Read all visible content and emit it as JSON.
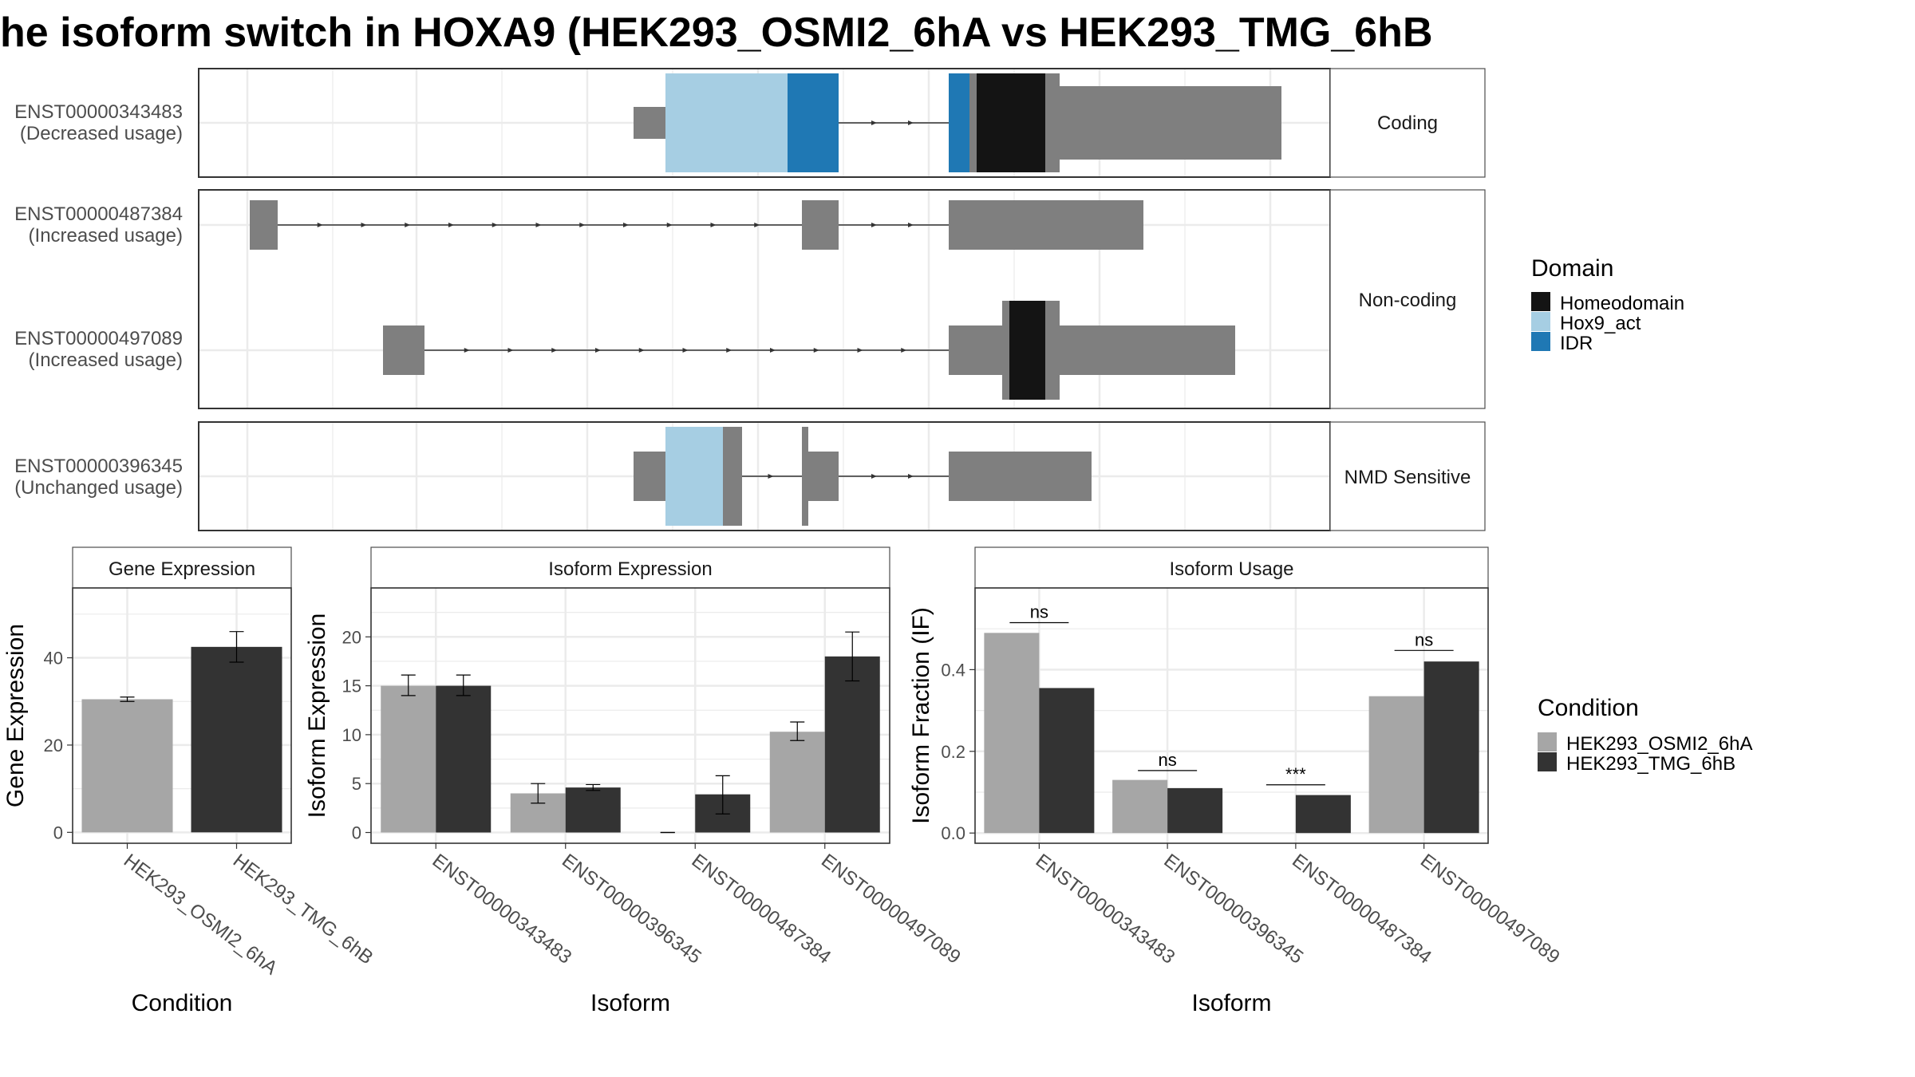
{
  "title": "he isoform switch in HOXA9 (HEK293_OSMI2_6hA vs HEK293_TMG_6hB",
  "colors": {
    "exon": "#7f7f7f",
    "homeodomain": "#141414",
    "hox9_act": "#a6cee3",
    "idr": "#1f78b4",
    "cond_a": "#a6a6a6",
    "cond_b": "#333333",
    "grid": "#ebebeb",
    "strip": "#ffffff"
  },
  "transcripts": [
    {
      "id": "ENST00000343483",
      "usage": "(Decreased usage)"
    },
    {
      "id": "ENST00000487384",
      "usage": "(Increased usage)"
    },
    {
      "id": "ENST00000497089",
      "usage": "(Increased usage)"
    },
    {
      "id": "ENST00000396345",
      "usage": "(Unchanged usage)"
    }
  ],
  "structure_facets": [
    "Coding",
    "Non-coding",
    "NMD Sensitive"
  ],
  "domain_legend": {
    "title": "Domain",
    "items": [
      {
        "label": "Homeodomain",
        "color": "#141414"
      },
      {
        "label": "Hox9_act",
        "color": "#a6cee3"
      },
      {
        "label": "IDR",
        "color": "#1f78b4"
      }
    ]
  },
  "condition_legend": {
    "title": "Condition",
    "items": [
      {
        "label": "HEK293_OSMI2_6hA",
        "color": "#a6a6a6"
      },
      {
        "label": "HEK293_TMG_6hB",
        "color": "#333333"
      }
    ]
  },
  "chart_data": [
    {
      "type": "bar",
      "title": "Gene Expression",
      "xlabel": "Condition",
      "ylabel": "Gene Expression",
      "categories": [
        "HEK293_OSMI2_6hA",
        "HEK293_TMG_6hB"
      ],
      "values": [
        30.5,
        42.5
      ],
      "error_low": [
        30.0,
        39.0
      ],
      "error_high": [
        31.0,
        46.0
      ],
      "ylim": [
        -2.5,
        56
      ],
      "yticks": [
        0,
        20,
        40
      ]
    },
    {
      "type": "bar",
      "title": "Isoform Expression",
      "xlabel": "Isoform",
      "ylabel": "Isoform Expression",
      "categories": [
        "ENST00000343483",
        "ENST00000396345",
        "ENST00000487384",
        "ENST00000497089"
      ],
      "series": [
        {
          "name": "HEK293_OSMI2_6hA",
          "values": [
            15.0,
            4.0,
            0.0,
            10.3
          ],
          "error_low": [
            14.0,
            3.0,
            0.0,
            9.4
          ],
          "error_high": [
            16.1,
            5.0,
            0.0,
            11.3
          ]
        },
        {
          "name": "HEK293_TMG_6hB",
          "values": [
            15.0,
            4.6,
            3.9,
            18.0
          ],
          "error_low": [
            14.0,
            4.3,
            1.9,
            15.5
          ],
          "error_high": [
            16.1,
            4.9,
            5.8,
            20.5
          ]
        }
      ],
      "ylim": [
        -1.1,
        25
      ],
      "yticks": [
        0,
        5,
        10,
        15,
        20
      ]
    },
    {
      "type": "bar",
      "title": "Isoform Usage",
      "xlabel": "Isoform",
      "ylabel": "Isoform Fraction (IF)",
      "categories": [
        "ENST00000343483",
        "ENST00000396345",
        "ENST00000487384",
        "ENST00000497089"
      ],
      "series": [
        {
          "name": "HEK293_OSMI2_6hA",
          "values": [
            0.49,
            0.13,
            0.0,
            0.335
          ]
        },
        {
          "name": "HEK293_TMG_6hB",
          "values": [
            0.355,
            0.11,
            0.093,
            0.42
          ]
        }
      ],
      "significance": [
        "ns",
        "ns",
        "***",
        "ns"
      ],
      "sig_level": [
        0.515,
        0.153,
        0.118,
        0.447
      ],
      "ylim": [
        -0.025,
        0.6
      ],
      "yticks": [
        0.0,
        0.2,
        0.4
      ],
      "ytick_labels": [
        "0.0",
        "0.2",
        "0.4"
      ]
    }
  ]
}
